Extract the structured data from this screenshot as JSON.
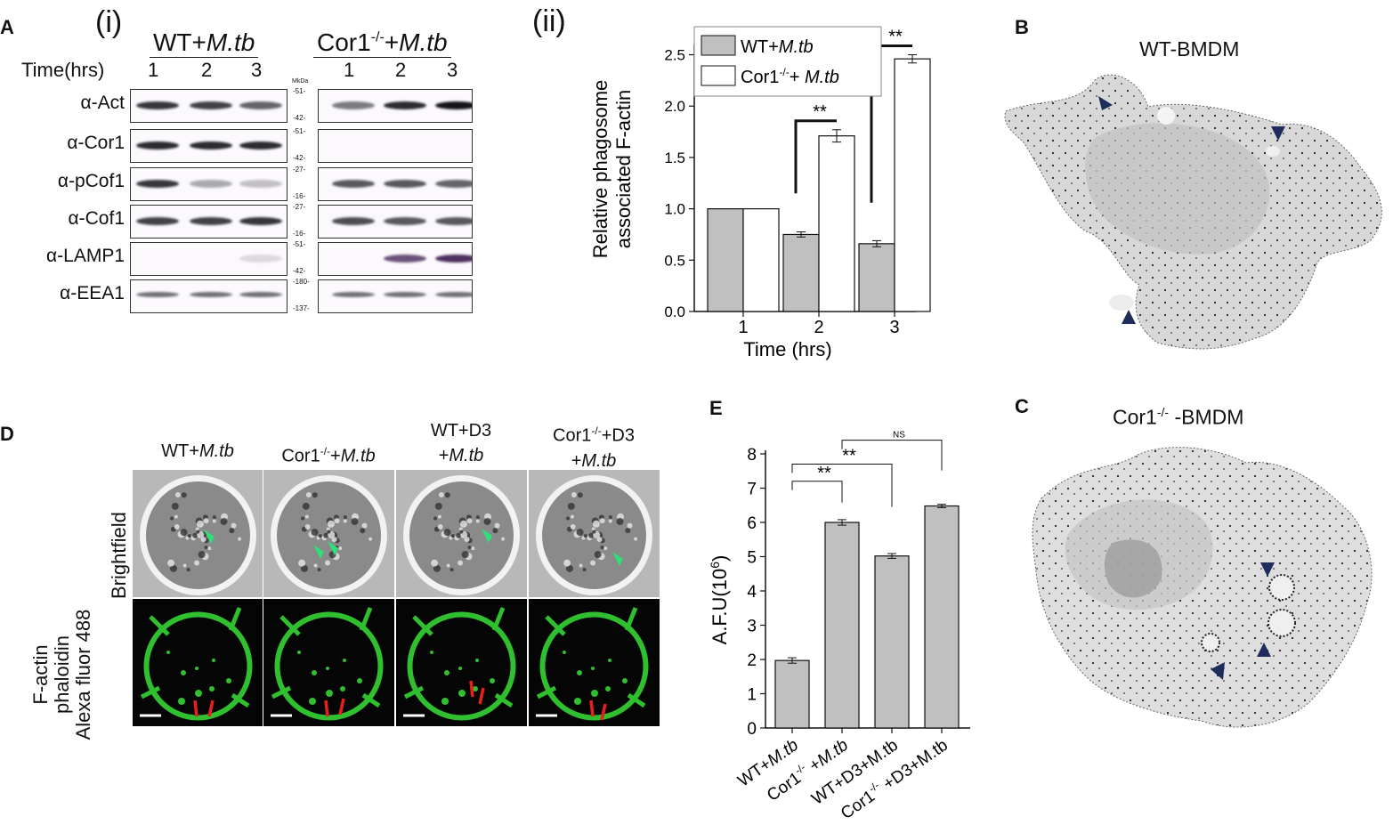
{
  "panels": {
    "A": {
      "letter": "A",
      "sub_i": "(i)",
      "sub_ii": "(ii)"
    },
    "B": {
      "letter": "B",
      "title": "WT-BMDM"
    },
    "C": {
      "letter": "C",
      "title_pre": "Cor1",
      "title_sup": "-/-",
      "title_post": " -BMDM"
    },
    "D": {
      "letter": "D"
    },
    "E": {
      "letter": "E"
    }
  },
  "blot": {
    "group_wt": {
      "pre": "WT+",
      "italic": "M.tb"
    },
    "group_ko": {
      "pre": "Cor1",
      "sup": "-/-",
      "mid": "+",
      "italic": "M.tb"
    },
    "time_label": "Time(hrs)",
    "times": [
      "1",
      "2",
      "3",
      "1",
      "2",
      "3"
    ],
    "mw_unit": "MkDa",
    "rows": [
      {
        "label": "α-Act",
        "mw_top": "-51-",
        "mw_bot": "-42-"
      },
      {
        "label": "α-Cor1",
        "mw_top": "-51-",
        "mw_bot": "-42-"
      },
      {
        "label": "α-pCof1",
        "mw_top": "-27-",
        "mw_bot": "-16-"
      },
      {
        "label": "α-Cof1",
        "mw_top": "-27-",
        "mw_bot": "-16-"
      },
      {
        "label": "α-LAMP1",
        "mw_top": "-51-",
        "mw_bot": "-42-"
      },
      {
        "label": "α-EEA1",
        "mw_top": "-180-",
        "mw_bot": "-137-"
      }
    ],
    "band_intensity": [
      [
        0.85,
        0.8,
        0.65,
        0.55,
        0.9,
        1.0
      ],
      [
        0.9,
        0.9,
        0.9,
        0,
        0,
        0
      ],
      [
        0.85,
        0.35,
        0.25,
        0.7,
        0.7,
        0.65
      ],
      [
        0.8,
        0.8,
        0.85,
        0.75,
        0.7,
        0.7
      ],
      [
        0,
        0,
        0.15,
        0,
        0.75,
        0.9
      ],
      [
        0.6,
        0.6,
        0.6,
        0.6,
        0.6,
        0.6
      ]
    ]
  },
  "chart_data": [
    {
      "id": "A-ii",
      "type": "bar",
      "categories": [
        "1",
        "2",
        "3"
      ],
      "series": [
        {
          "name_pre": "WT+",
          "name_italic": "M.tb",
          "values": [
            1.0,
            0.75,
            0.66
          ],
          "errors": [
            0,
            0.025,
            0.03
          ],
          "color": "#c0c0c0"
        },
        {
          "name_pre": "Cor1",
          "name_sup": "-/-",
          "name_mid": "+ ",
          "name_italic": "M.tb",
          "values": [
            1.0,
            1.71,
            2.46
          ],
          "errors": [
            0,
            0.06,
            0.04
          ],
          "color": "#ffffff"
        }
      ],
      "ylabel_line1": "Relative phagosome",
      "ylabel_line2": "associated F-actin",
      "xlabel": "Time (hrs)",
      "ylim": [
        0,
        2.6
      ],
      "yticks": [
        "0.0",
        "0.5",
        "1.0",
        "1.5",
        "2.0",
        "2.5"
      ],
      "significance": [
        "**",
        "**"
      ],
      "legend_position": "top-left"
    },
    {
      "id": "E",
      "type": "bar",
      "categories": [
        {
          "pre": "WT+",
          "italic": "M.tb"
        },
        {
          "pre": "Cor1",
          "sup": "-/-",
          "post": " +",
          "italic": "M.tb"
        },
        {
          "pre": "WT+D3+M.tb"
        },
        {
          "pre": "Cor1",
          "sup": "-/-",
          "post": " +D3+M.tb"
        }
      ],
      "values": [
        1.97,
        6.0,
        5.02,
        6.48
      ],
      "errors": [
        0.08,
        0.08,
        0.07,
        0.05
      ],
      "color": "#c0c0c0",
      "ylabel_pre": "A.F.U(10",
      "ylabel_sup": "6",
      "ylabel_post": ")",
      "ylim": [
        0,
        8
      ],
      "yticks": [
        "0",
        "1",
        "2",
        "3",
        "4",
        "5",
        "6",
        "7",
        "8"
      ],
      "significance": [
        "**",
        "**",
        "NS"
      ]
    }
  ],
  "microscopy": {
    "columns": [
      {
        "line1_pre": "WT+",
        "line1_italic": "M.tb",
        "line2_italic": ""
      },
      {
        "line1_pre": "Cor1",
        "line1_sup": "-/-",
        "line1_mid": "+",
        "line1_italic": "M.tb",
        "line2_italic": ""
      },
      {
        "line1_pre": "WT+D3",
        "line2_pre": "+",
        "line2_italic": "M.tb"
      },
      {
        "line1_pre": "Cor1",
        "line1_sup": "-/-",
        "line1_mid": "+D3",
        "line2_pre": "+",
        "line2_italic": "M.tb"
      }
    ],
    "row_label_top": "Brightfield",
    "row_label_bottom_1": "F-actin",
    "row_label_bottom_2": "phaloidin",
    "row_label_bottom_3": "Alexa fluor 488"
  },
  "colors": {
    "arrow_navy": "#1f2d5c",
    "arrow_green": "#2ee07a",
    "actin_green": "#2fbf2f",
    "mtb_red": "#e8201a",
    "bar_gray": "#c0c0c0"
  }
}
